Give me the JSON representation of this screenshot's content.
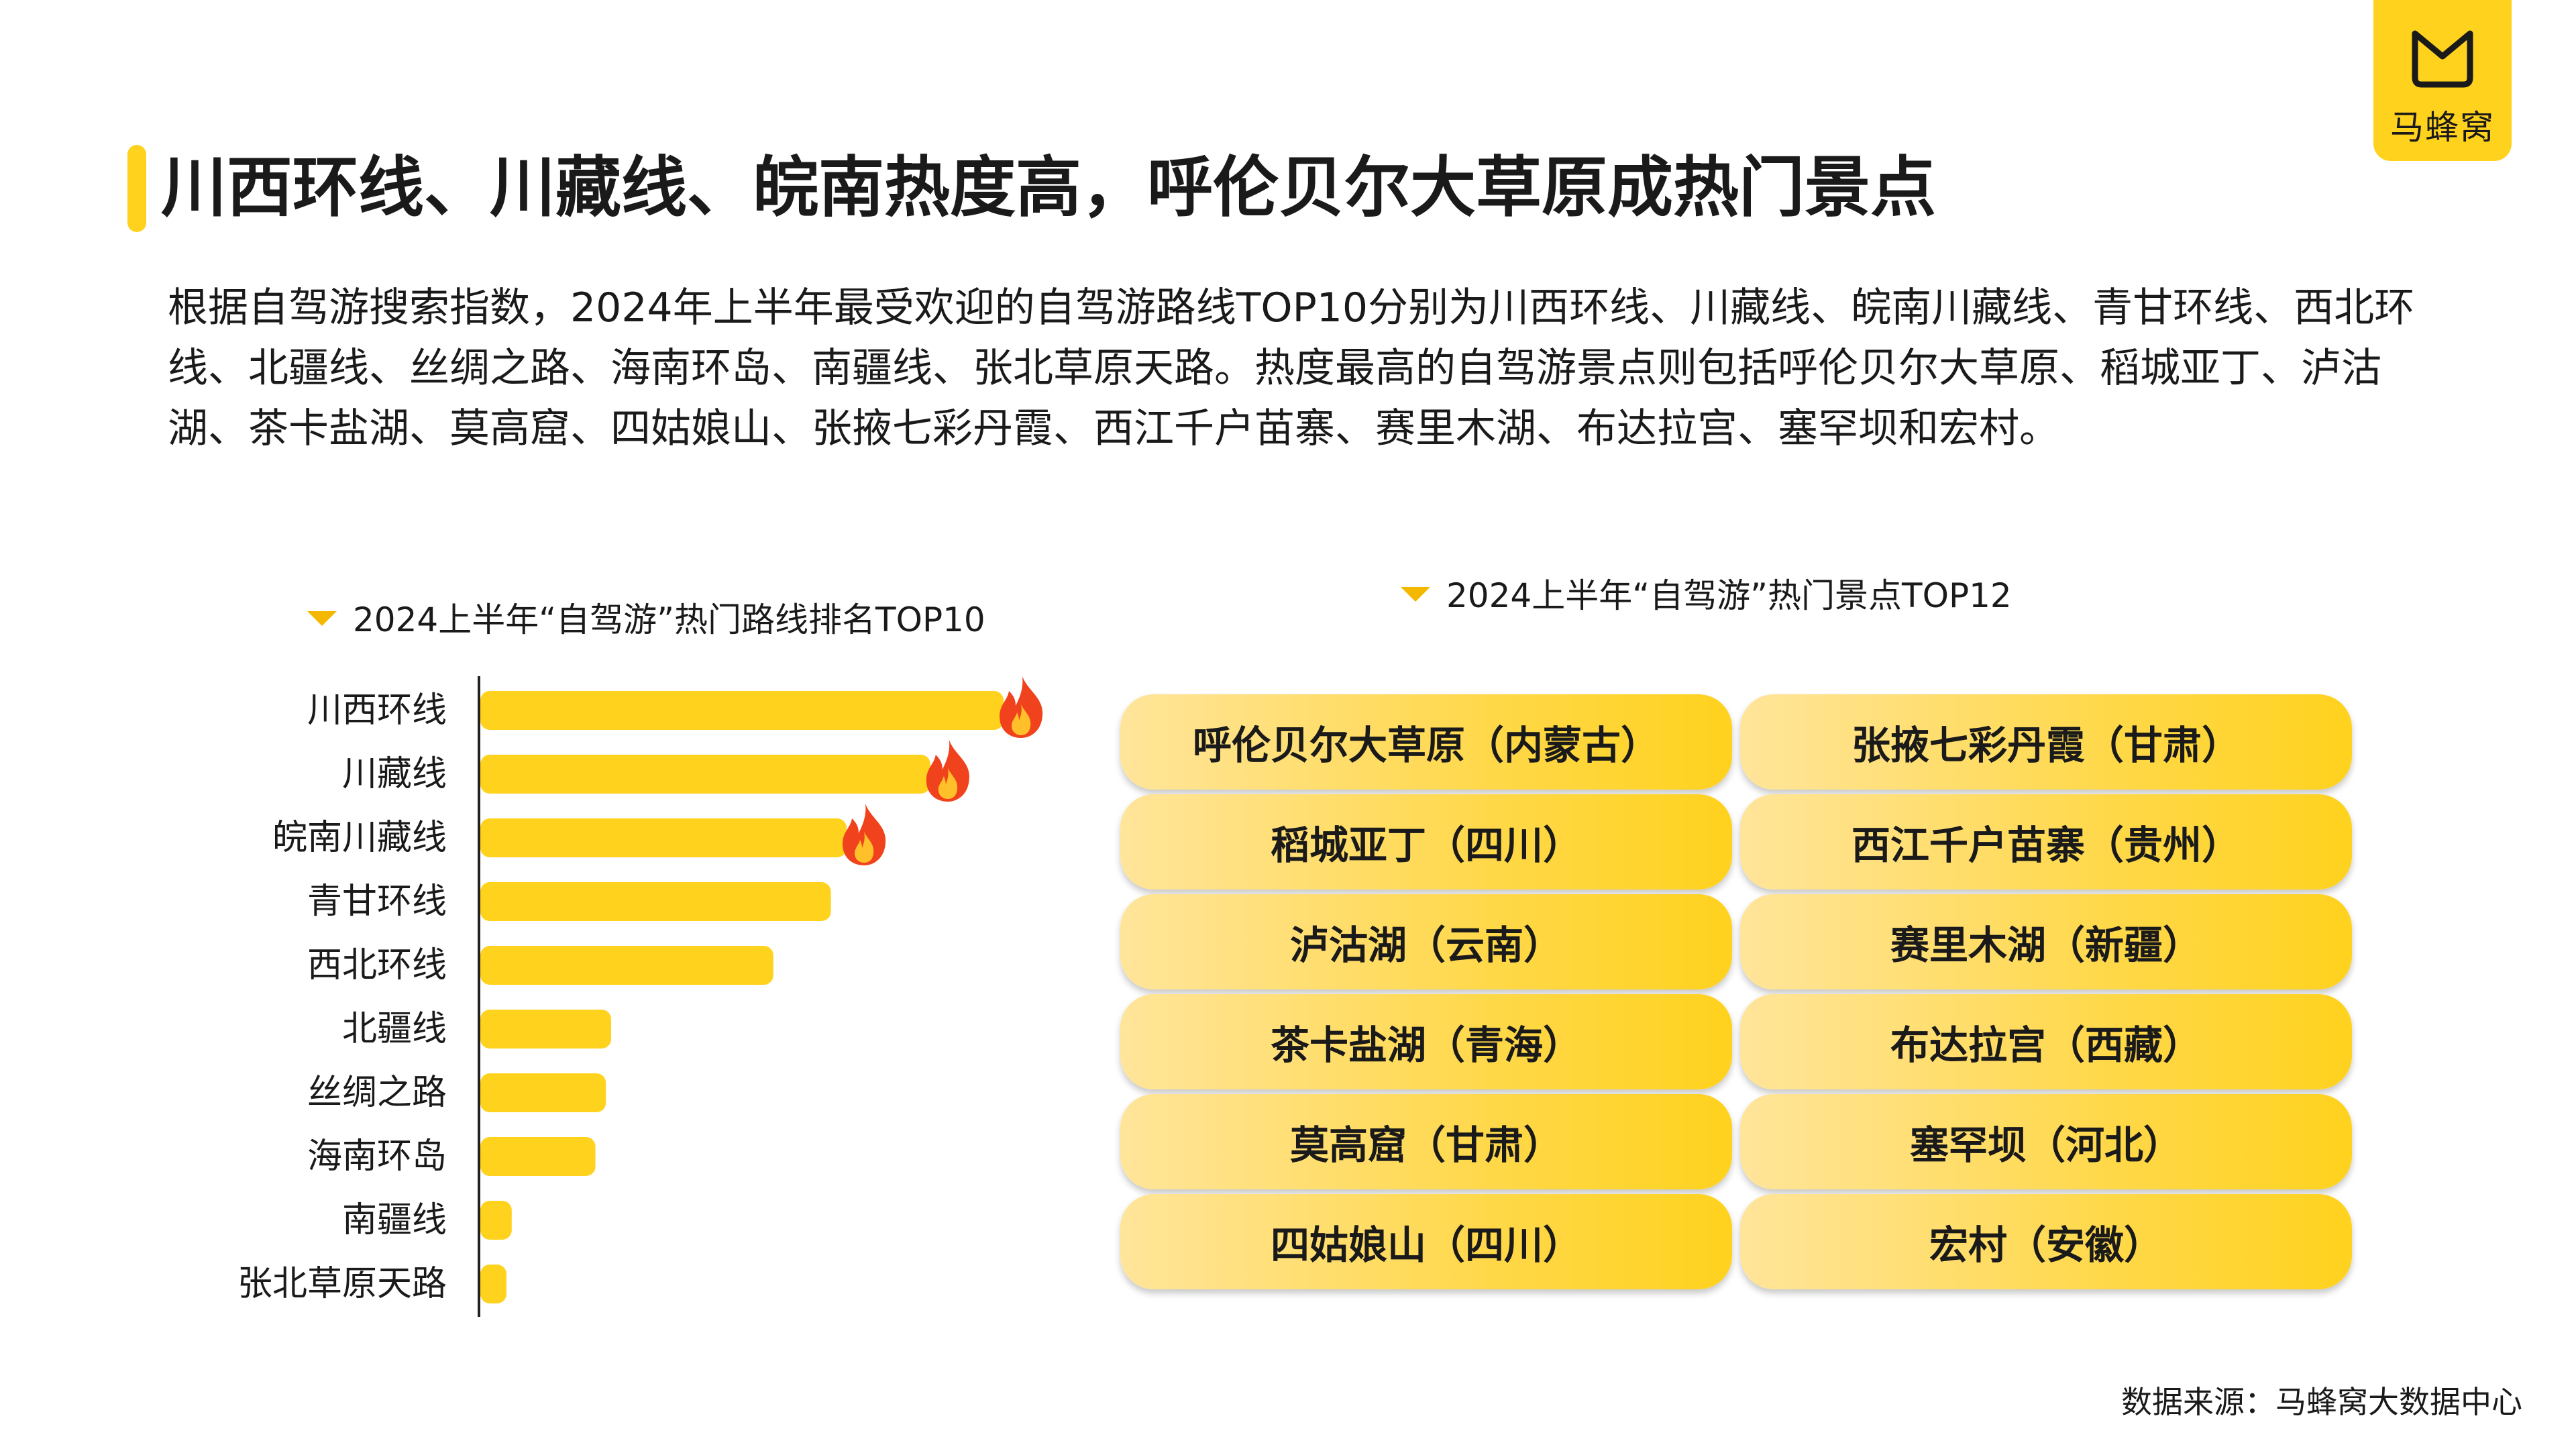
{
  "brand": {
    "logo_text": "马蜂窝",
    "accent_color": "#FFD21E"
  },
  "title": "川西环线、川藏线、皖南热度高，呼伦贝尔大草原成热门景点",
  "paragraph": "根据自驾游搜索指数，2024年上半年最受欢迎的自驾游路线TOP10分别为川西环线、川藏线、皖南川藏线、青甘环线、西北环线、北疆线、丝绸之路、海南环岛、南疆线、张北草原天路。热度最高的自驾游景点则包括呼伦贝尔大草原、稻城亚丁、泸沽湖、茶卡盐湖、莫高窟、四姑娘山、张掖七彩丹霞、西江千户苗寨、赛里木湖、布达拉宫、塞罕坝和宏村。",
  "chart_data": [
    {
      "type": "bar",
      "orientation": "horizontal",
      "title": "2024上半年“自驾游”热门路线排名TOP10",
      "categories": [
        "川西环线",
        "川藏线",
        "皖南川藏线",
        "青甘环线",
        "西北环线",
        "北疆线",
        "丝绸之路",
        "海南环岛",
        "南疆线",
        "张北草原天路"
      ],
      "values": [
        100,
        86,
        70,
        67,
        56,
        25,
        24,
        22,
        6,
        5
      ],
      "value_unit": "relative popularity (no axis printed)",
      "xlim": [
        0,
        100
      ],
      "hot_marked": [
        "川西环线",
        "川藏线",
        "皖南川藏线"
      ],
      "bar_color": "#FFD21E",
      "hot_icon": "fire-icon",
      "grid": false
    },
    {
      "type": "table",
      "title": "2024上半年“自驾游”热门景点TOP12",
      "columns": [
        [
          "呼伦贝尔大草原（内蒙古）",
          "稻城亚丁（四川）",
          "泸沽湖（云南）",
          "茶卡盐湖（青海）",
          "莫高窟（甘肃）",
          "四姑娘山（四川）"
        ],
        [
          "张掖七彩丹霞（甘肃）",
          "西江千户苗寨（贵州）",
          "赛里木湖（新疆）",
          "布达拉宫（西藏）",
          "塞罕坝（河北）",
          "宏村（安徽）"
        ]
      ]
    }
  ],
  "source": "数据来源：马蜂窝大数据中心"
}
